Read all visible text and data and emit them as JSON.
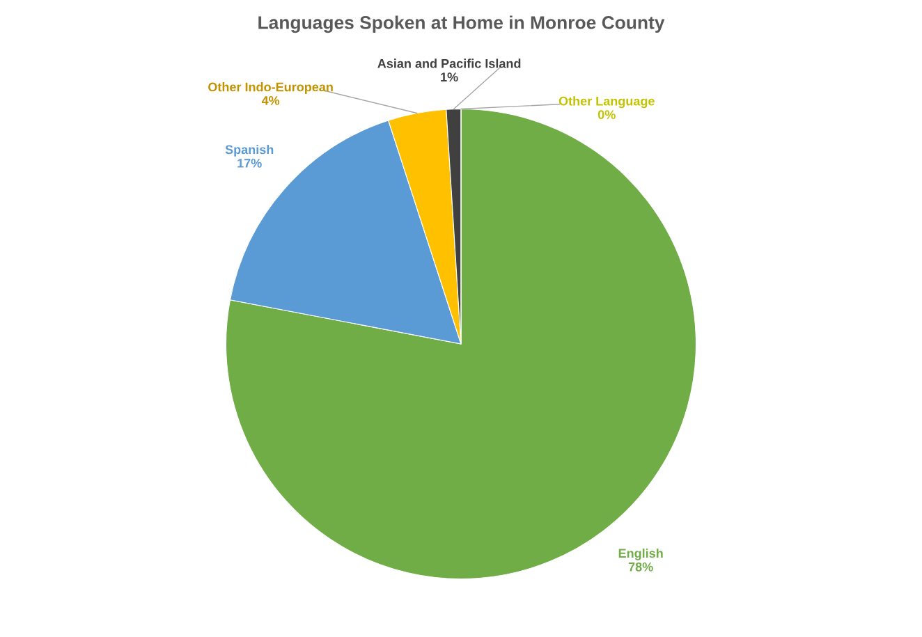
{
  "chart_data": {
    "type": "pie",
    "title": "Languages Spoken at Home in Monroe County",
    "categories": [
      "English",
      "Spanish",
      "Other Indo-European",
      "Asian and Pacific Island",
      "Other Language"
    ],
    "values": [
      78,
      17,
      4,
      1,
      0
    ],
    "value_labels": [
      "78%",
      "17%",
      "4%",
      "1%",
      "0%"
    ],
    "colors": [
      "#70ad47",
      "#5b9bd5",
      "#ffc000",
      "#404040",
      "#ffff00"
    ]
  }
}
